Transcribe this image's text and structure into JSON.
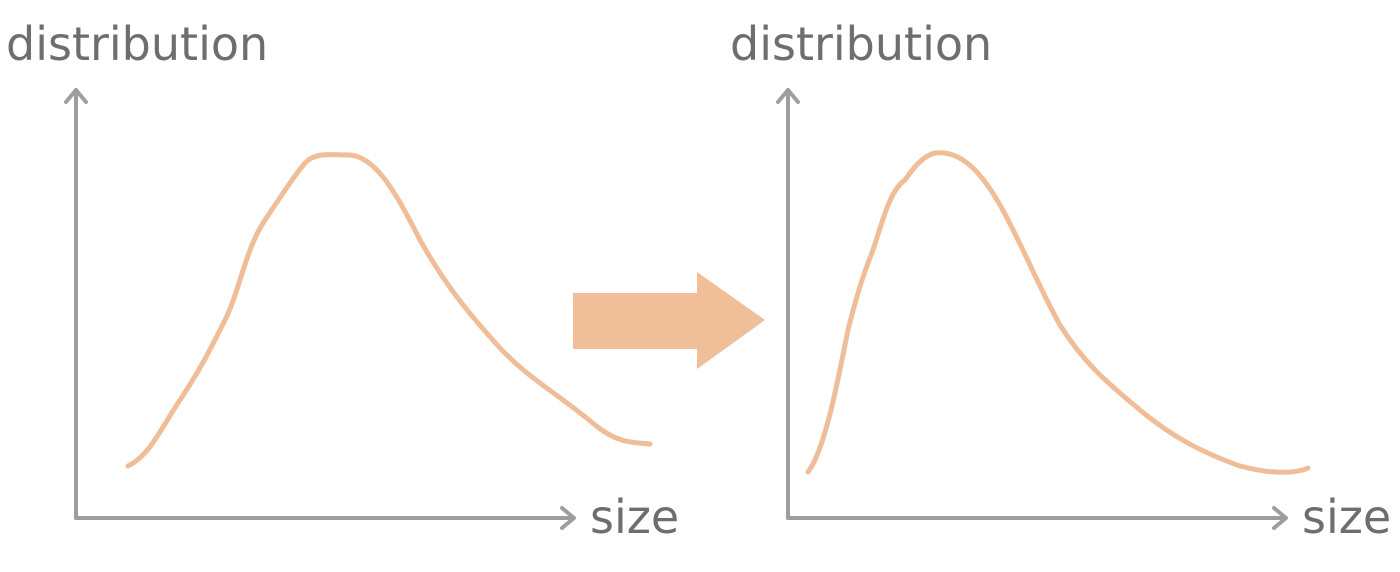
{
  "colors": {
    "axis": "#9e9e9e",
    "label": "#6e6e6e",
    "curve": "#efbe98",
    "arrow": "#f0be98"
  },
  "panels": [
    {
      "y_label": "distribution",
      "x_label": "size",
      "shape": "symmetric bell-shaped distribution"
    },
    {
      "y_label": "distribution",
      "x_label": "size",
      "shape": "right-skewed distribution"
    }
  ],
  "transition": {
    "icon": "right-arrow-icon"
  }
}
